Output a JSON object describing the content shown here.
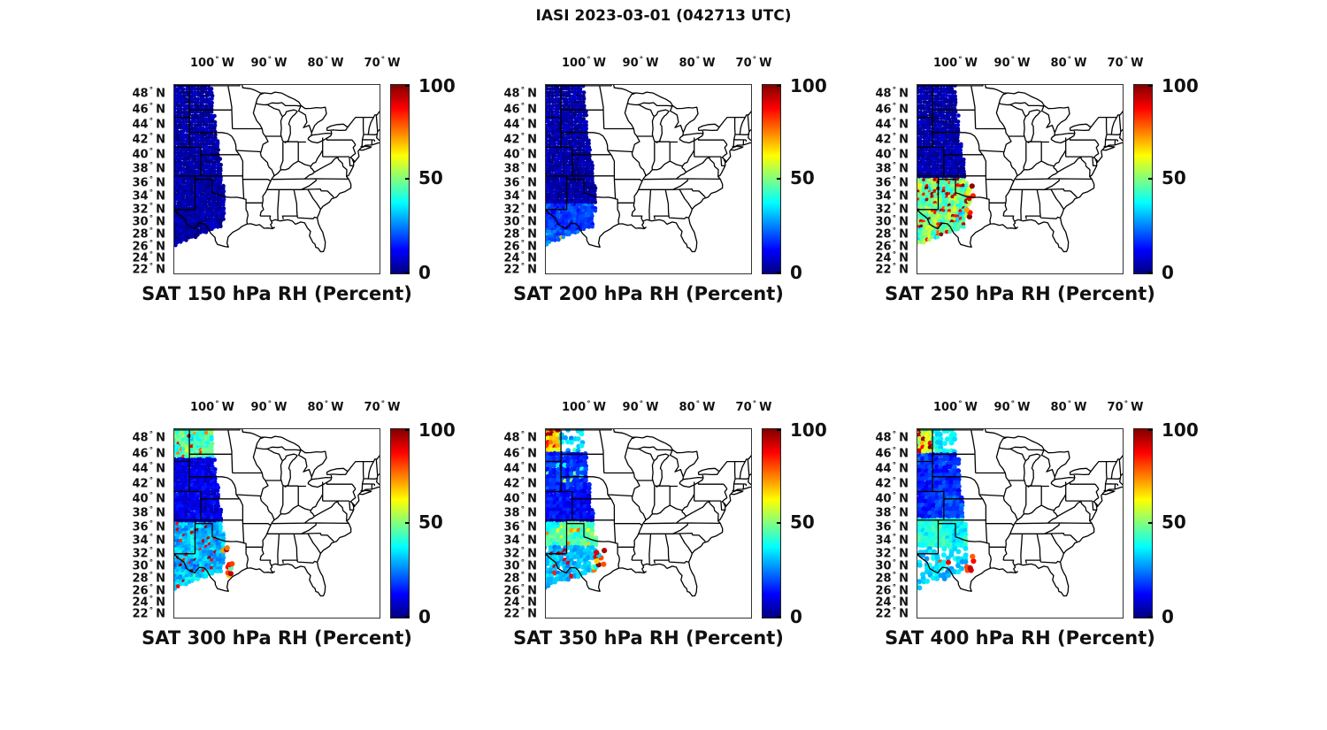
{
  "figure": {
    "title": "IASI 2023-03-01 (042713 UTC)",
    "background": "#ffffff",
    "text_color": "#111111"
  },
  "axes": {
    "lon_ticks": [
      {
        "num": "100",
        "dir": "W",
        "lon": -100
      },
      {
        "num": "90",
        "dir": "W",
        "lon": -90
      },
      {
        "num": "80",
        "dir": "W",
        "lon": -80
      },
      {
        "num": "70",
        "dir": "W",
        "lon": -70
      }
    ],
    "lat_ticks": [
      {
        "num": "48",
        "dir": "N",
        "lat": 48
      },
      {
        "num": "46",
        "dir": "N",
        "lat": 46
      },
      {
        "num": "44",
        "dir": "N",
        "lat": 44
      },
      {
        "num": "42",
        "dir": "N",
        "lat": 42
      },
      {
        "num": "40",
        "dir": "N",
        "lat": 40
      },
      {
        "num": "38",
        "dir": "N",
        "lat": 38
      },
      {
        "num": "36",
        "dir": "N",
        "lat": 36
      },
      {
        "num": "34",
        "dir": "N",
        "lat": 34
      },
      {
        "num": "32",
        "dir": "N",
        "lat": 32
      },
      {
        "num": "30",
        "dir": "N",
        "lat": 30
      },
      {
        "num": "28",
        "dir": "N",
        "lat": 28
      },
      {
        "num": "26",
        "dir": "N",
        "lat": 26
      },
      {
        "num": "24",
        "dir": "N",
        "lat": 24
      },
      {
        "num": "22",
        "dir": "N",
        "lat": 22
      }
    ]
  },
  "colorbar": {
    "min": 0,
    "max": 100,
    "tick_labels": [
      "100",
      "50",
      "0"
    ],
    "tick_values": [
      100,
      50,
      0
    ],
    "colormap": "jet",
    "stops": [
      "#000080",
      "#0000ff",
      "#00ffff",
      "#ffff00",
      "#ff0000",
      "#800000"
    ]
  },
  "chart_data": {
    "type": "scatter",
    "subtype": "satellite-swath-map",
    "instrument": "IASI",
    "date": "2023-03-01",
    "time_utc": "042713",
    "variable": "RH (Percent)",
    "value_range": [
      0,
      100
    ],
    "map_extent": {
      "lon": [
        -106.9,
        -69.7
      ],
      "lat": [
        21.0,
        49.6
      ]
    },
    "swath": {
      "west_lon": -107.6,
      "top_lat": 49.55,
      "right_edge": [
        [
          -99.9,
          49.6
        ],
        [
          -99.2,
          44.0
        ],
        [
          -98.5,
          40.0
        ],
        [
          -97.7,
          35.0
        ],
        [
          -97.7,
          31.5
        ],
        [
          -98.0,
          29.6
        ]
      ],
      "bottom_edge": [
        [
          -98.0,
          29.6
        ],
        [
          -107.5,
          26.2
        ]
      ]
    },
    "panels": [
      {
        "id": "sat-150",
        "level_hPa": 150,
        "title": "SAT 150 hPa RH (Percent)",
        "dot_r": 2.3,
        "row_step": 0.42,
        "col_step": 0.5,
        "seed": 11,
        "zones": [
          {
            "lat": [
              20,
              50
            ],
            "base": 2,
            "amp": 7
          }
        ],
        "extras": []
      },
      {
        "id": "sat-200",
        "level_hPa": 200,
        "title": "SAT 200 hPa RH (Percent)",
        "dot_r": 2.3,
        "row_step": 0.42,
        "col_step": 0.5,
        "seed": 148,
        "zones": [
          {
            "lat": [
              33,
              50
            ],
            "base": 2,
            "amp": 8
          },
          {
            "lat": [
              28.8,
              33
            ],
            "base": 10,
            "amp": 30
          },
          {
            "lat": [
              20,
              28.8
            ],
            "base": 14,
            "amp": 32,
            "spot_chance": 0.03,
            "spot_range": [
              55,
              95
            ]
          }
        ],
        "extras": []
      },
      {
        "id": "sat-250",
        "level_hPa": 250,
        "title": "SAT 250 hPa RH (Percent)",
        "dot_r": 2.3,
        "row_step": 0.42,
        "col_step": 0.5,
        "seed": 285,
        "zones": [
          {
            "lat": [
              36.8,
              50
            ],
            "base": 2,
            "amp": 9
          },
          {
            "lat": [
              20,
              36.8
            ],
            "base": 28,
            "amp": 75,
            "spot_chance": 0.2,
            "spot_range": [
              82,
              100
            ]
          }
        ],
        "extras": [
          {
            "lat": [
              31,
              36.3
            ],
            "lon_east": -96.9,
            "chance": 0.3,
            "range": [
              50,
              100
            ]
          }
        ]
      },
      {
        "id": "sat-300",
        "level_hPa": 300,
        "title": "SAT 300 hPa RH (Percent)",
        "dot_r": 2.4,
        "row_step": 0.42,
        "col_step": 0.5,
        "seed": 422,
        "zones": [
          {
            "lat": [
              45.4,
              50
            ],
            "base": 32,
            "amp": 55,
            "spot_chance": 0.08,
            "spot_range": [
              70,
              95
            ]
          },
          {
            "lat": [
              36.8,
              45.4
            ],
            "base": 5,
            "amp": 20
          },
          {
            "lat": [
              20,
              36.8
            ],
            "base": 18,
            "amp": 52,
            "spot_chance": 0.06,
            "spot_range": [
              85,
              100
            ]
          }
        ],
        "extras": [
          {
            "lat": [
              28.5,
              33
            ],
            "lon_east": -96.5,
            "chance": 0.22,
            "range": [
              40,
              100
            ]
          }
        ]
      },
      {
        "id": "sat-350",
        "level_hPa": 350,
        "title": "SAT 350 hPa RH (Percent)",
        "dot_r": 2.9,
        "row_step": 0.5,
        "col_step": 0.6,
        "seed": 559,
        "zones": [
          {
            "lat": [
              46.4,
              50
            ],
            "base": 55,
            "amp": 45,
            "spot_chance": 0.25,
            "spot_range": [
              85,
              100
            ],
            "lon_split": -104,
            "east": {
              "base": 25,
              "amp": 30,
              "gap": 0.5,
              "spot_chance": 0.05,
              "spot_range": [
                45,
                60
              ]
            }
          },
          {
            "lat": [
              41,
              46.4
            ],
            "base": 10,
            "amp": 26,
            "spot_chance": 0.06,
            "spot_range": [
              35,
              55
            ]
          },
          {
            "lat": [
              36.6,
              41
            ],
            "base": 8,
            "amp": 20
          },
          {
            "lat": [
              33,
              36.6
            ],
            "base": 34,
            "amp": 42,
            "spot_chance": 0.1,
            "spot_range": [
              58,
              85
            ]
          },
          {
            "lat": [
              20,
              33
            ],
            "base": 24,
            "amp": 30,
            "gap": 0.15,
            "spot_chance": 0.05,
            "spot_range": [
              85,
              100
            ]
          }
        ],
        "extras": [
          {
            "lat": [
              29,
              33
            ],
            "lon_east": -96.2,
            "chance": 0.18,
            "range": [
              30,
              100
            ]
          }
        ]
      },
      {
        "id": "sat-400",
        "level_hPa": 400,
        "title": "SAT 400 hPa RH (Percent)",
        "dot_r": 3.0,
        "row_step": 0.52,
        "col_step": 0.62,
        "seed": 696,
        "zones": [
          {
            "lat": [
              46,
              50
            ],
            "base": 45,
            "amp": 50,
            "spot_chance": 0.2,
            "spot_range": [
              85,
              100
            ],
            "lon_split": -104.4,
            "east": {
              "base": 30,
              "amp": 30,
              "gap": 0.35
            }
          },
          {
            "lat": [
              37,
              46
            ],
            "base": 10,
            "amp": 30
          },
          {
            "lat": [
              33,
              37
            ],
            "base": 30,
            "amp": 40
          },
          {
            "lat": [
              20,
              33
            ],
            "base": 26,
            "amp": 32,
            "gap": 0.5,
            "spot_chance": 0.07,
            "spot_range": [
              78,
              97
            ]
          }
        ],
        "extras": [
          {
            "lat": [
              29,
              32.5
            ],
            "lon_east": -96.8,
            "chance": 0.12,
            "range": [
              70,
              100
            ]
          }
        ]
      }
    ]
  }
}
